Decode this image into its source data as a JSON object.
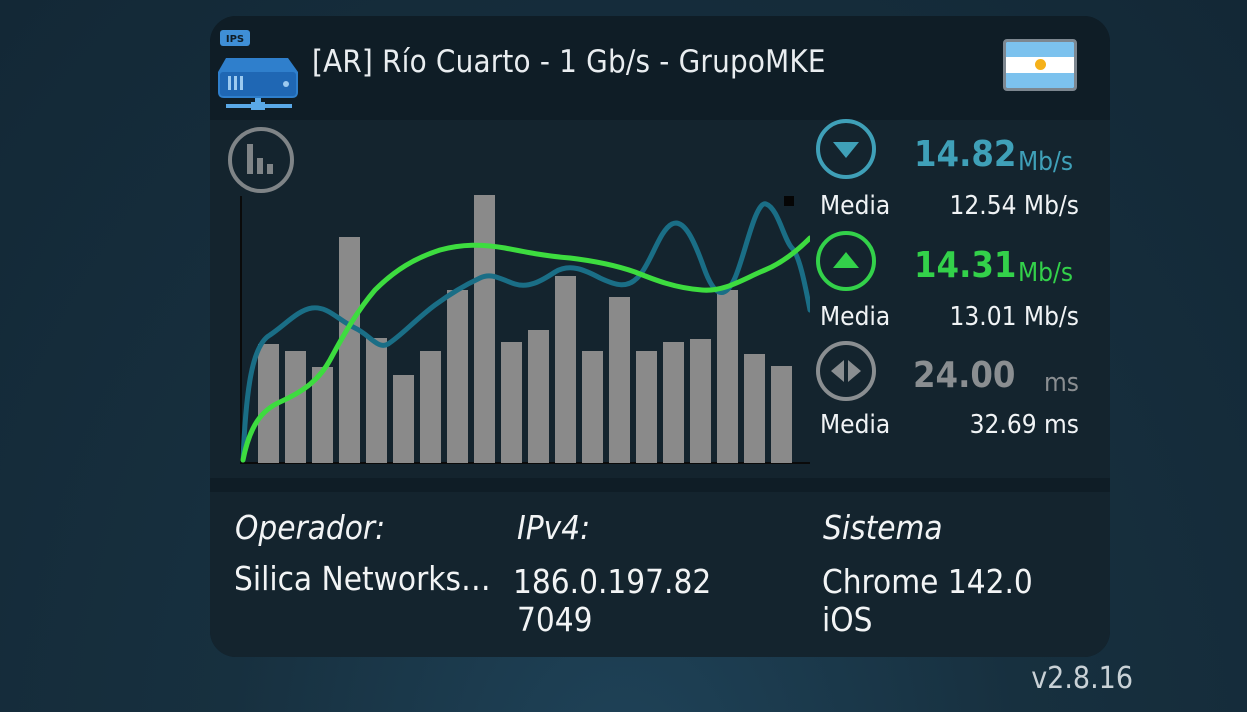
{
  "header": {
    "server_icon": "server-ips-icon",
    "server_icon_badge": "IPS",
    "title": "[AR] Río Cuarto - 1 Gb/s - GrupoMKE",
    "flag_icon": "argentina-flag-icon"
  },
  "chart": {
    "toggle_icon": "bar-chart-icon"
  },
  "stats": {
    "download": {
      "icon": "download-arrow-icon",
      "value": "14.82",
      "unit": "Mb/s",
      "media_label": "Media",
      "media_value": "12.54 Mb/s",
      "color": "#3fa0b8"
    },
    "upload": {
      "icon": "upload-arrow-icon",
      "value": "14.31",
      "unit": "Mb/s",
      "media_label": "Media",
      "media_value": "13.01 Mb/s",
      "color": "#33d14a"
    },
    "ping": {
      "icon": "ping-arrows-icon",
      "value": "24.00",
      "unit": "ms",
      "media_label": "Media",
      "media_value": "32.69 ms",
      "color": "#8a8e91"
    }
  },
  "info": {
    "operator_label": "Operador:",
    "operator_value": "Silica Networks…",
    "ipv4_label": "IPv4:",
    "ipv4_line1": "186.0.197.82",
    "ipv4_line2": "7049",
    "system_label": "Sistema",
    "system_line1": "Chrome 142.0",
    "system_line2": "iOS"
  },
  "footer": {
    "version": "v2.8.16"
  },
  "colors": {
    "card_bg": "#0f1d26",
    "panel_bg": "#14242e",
    "bar": "#8a8a8a",
    "download_line": "#1a6e86",
    "upload_line": "#3ddc3f"
  }
}
